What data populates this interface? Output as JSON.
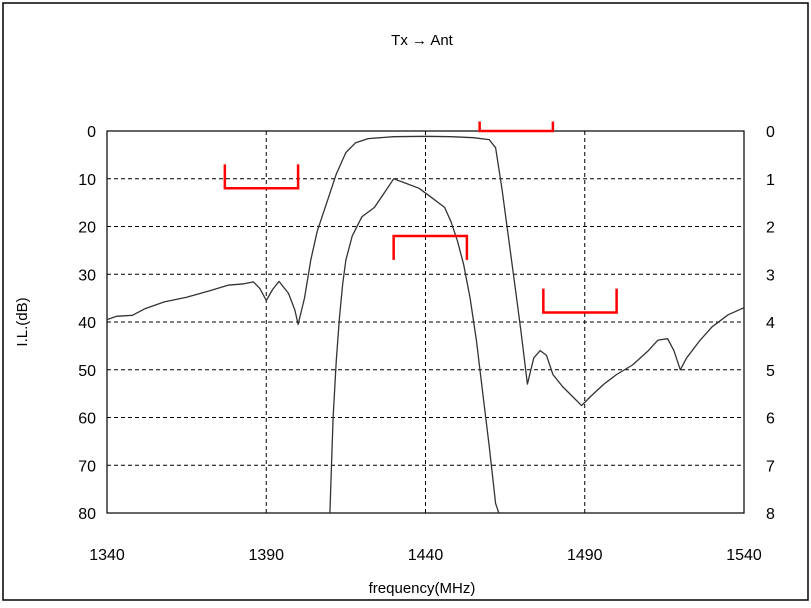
{
  "chart_data": {
    "type": "line",
    "title": "Tx → Ant",
    "xlabel": "frequency(MHz)",
    "ylabel": "I.L.(dB)",
    "xlim": [
      1340,
      1540
    ],
    "ylim": [
      0,
      80
    ],
    "y_inverted": true,
    "ylim_right": [
      0,
      8
    ],
    "grid": true,
    "x_ticks": [
      "1340",
      "1390",
      "1440",
      "1490",
      "1540"
    ],
    "x_tick_values": [
      1340,
      1390,
      1440,
      1490,
      1540
    ],
    "y_ticks_left": [
      "0",
      "10",
      "20",
      "30",
      "40",
      "50",
      "60",
      "70",
      "80"
    ],
    "y_ticks_right": [
      "0",
      "1",
      "2",
      "3",
      "4",
      "5",
      "6",
      "7",
      "8"
    ],
    "series": [
      {
        "axis": "left",
        "color": "#333333",
        "points": [
          [
            1340,
            39.5
          ],
          [
            1343,
            38.8
          ],
          [
            1348,
            38.6
          ],
          [
            1352,
            37.2
          ],
          [
            1358,
            35.8
          ],
          [
            1365,
            34.8
          ],
          [
            1372,
            33.5
          ],
          [
            1378,
            32.3
          ],
          [
            1383,
            32.0
          ],
          [
            1386,
            31.6
          ],
          [
            1388,
            33.0
          ],
          [
            1390,
            35.5
          ],
          [
            1392,
            33.2
          ],
          [
            1394,
            31.5
          ],
          [
            1397,
            34.0
          ],
          [
            1399,
            37.5
          ],
          [
            1400,
            40.5
          ],
          [
            1402,
            35.0
          ],
          [
            1404,
            27.0
          ],
          [
            1406,
            21.0
          ],
          [
            1409,
            15.0
          ],
          [
            1412,
            9.0
          ],
          [
            1415,
            4.5
          ],
          [
            1418,
            2.5
          ],
          [
            1422,
            1.6
          ],
          [
            1430,
            1.2
          ],
          [
            1440,
            1.1
          ],
          [
            1448,
            1.2
          ],
          [
            1455,
            1.4
          ],
          [
            1460,
            1.8
          ],
          [
            1462,
            3.5
          ],
          [
            1464,
            12.0
          ],
          [
            1466,
            22.0
          ],
          [
            1468,
            32.0
          ],
          [
            1470,
            42.0
          ],
          [
            1472,
            53.0
          ],
          [
            1474,
            47.5
          ],
          [
            1476,
            46.0
          ],
          [
            1478,
            47.0
          ],
          [
            1480,
            51.0
          ],
          [
            1483,
            53.5
          ],
          [
            1486,
            55.5
          ],
          [
            1489,
            57.5
          ],
          [
            1492,
            55.5
          ],
          [
            1496,
            53.0
          ],
          [
            1500,
            51.0
          ],
          [
            1505,
            49.0
          ],
          [
            1510,
            46.0
          ],
          [
            1513,
            43.8
          ],
          [
            1516,
            43.5
          ],
          [
            1518,
            46.0
          ],
          [
            1520,
            50.0
          ],
          [
            1522,
            47.5
          ],
          [
            1526,
            44.0
          ],
          [
            1530,
            41.0
          ],
          [
            1535,
            38.5
          ],
          [
            1540,
            37.0
          ]
        ]
      },
      {
        "axis": "right",
        "color": "#333333",
        "points": [
          [
            1410,
            8.0
          ],
          [
            1411,
            6.0
          ],
          [
            1412,
            4.8
          ],
          [
            1413,
            3.9
          ],
          [
            1414,
            3.2
          ],
          [
            1415,
            2.7
          ],
          [
            1417,
            2.2
          ],
          [
            1420,
            1.8
          ],
          [
            1424,
            1.6
          ],
          [
            1427,
            1.3
          ],
          [
            1430,
            1.0
          ],
          [
            1434,
            1.1
          ],
          [
            1438,
            1.2
          ],
          [
            1442,
            1.4
          ],
          [
            1446,
            1.6
          ],
          [
            1448,
            1.9
          ],
          [
            1450,
            2.3
          ],
          [
            1452,
            2.8
          ],
          [
            1454,
            3.5
          ],
          [
            1456,
            4.4
          ],
          [
            1458,
            5.5
          ],
          [
            1460,
            6.6
          ],
          [
            1462,
            7.8
          ],
          [
            1463,
            8.0
          ]
        ]
      }
    ],
    "spec_brackets": {
      "color": "#ff0000",
      "items": [
        {
          "x": [
            1377,
            1400
          ],
          "y": 12,
          "tick_to": 7,
          "dir": "up"
        },
        {
          "x": [
            1430,
            1453
          ],
          "y": 22,
          "tick_to": 27,
          "dir": "down"
        },
        {
          "x": [
            1457,
            1480
          ],
          "y": 0,
          "tick_to": -2,
          "dir": "up"
        },
        {
          "x": [
            1477,
            1500
          ],
          "y": 38,
          "tick_to": 33,
          "dir": "up"
        }
      ]
    }
  }
}
